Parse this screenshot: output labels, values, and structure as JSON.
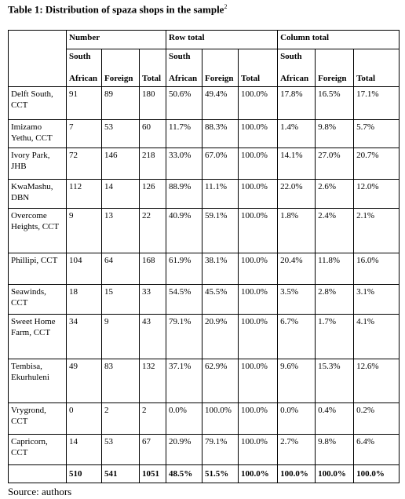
{
  "title": "Table 1: Distribution of spaza shops in the sample",
  "title_note": "2",
  "table": {
    "groups": [
      "Number",
      "Row total",
      "Column total"
    ],
    "subheaders": [
      [
        "South",
        "African"
      ],
      "Foreign",
      "Total",
      [
        "South",
        "African"
      ],
      "Foreign",
      "Total",
      [
        "South",
        "African"
      ],
      "Foreign",
      "Total"
    ],
    "rows": [
      [
        "Delft South, CCT",
        "91",
        "89",
        "180",
        "50.6%",
        "49.4%",
        "100.0%",
        "17.8%",
        "16.5%",
        "17.1%"
      ],
      [
        "Imizamo Yethu, CCT",
        "7",
        "53",
        "60",
        "11.7%",
        "88.3%",
        "100.0%",
        "1.4%",
        "9.8%",
        "5.7%"
      ],
      [
        "Ivory Park, JHB",
        "72",
        "146",
        "218",
        "33.0%",
        "67.0%",
        "100.0%",
        "14.1%",
        "27.0%",
        "20.7%"
      ],
      [
        "KwaMashu, DBN",
        "112",
        "14",
        "126",
        "88.9%",
        "11.1%",
        "100.0%",
        "22.0%",
        "2.6%",
        "12.0%"
      ],
      [
        "Overcome Heights, CCT",
        "9",
        "13",
        "22",
        "40.9%",
        "59.1%",
        "100.0%",
        "1.8%",
        "2.4%",
        "2.1%"
      ],
      [
        "Phillipi, CCT",
        "104",
        "64",
        "168",
        "61.9%",
        "38.1%",
        "100.0%",
        "20.4%",
        "11.8%",
        "16.0%"
      ],
      [
        "Seawinds, CCT",
        "18",
        "15",
        "33",
        "54.5%",
        "45.5%",
        "100.0%",
        "3.5%",
        "2.8%",
        "3.1%"
      ],
      [
        "Sweet Home Farm, CCT",
        "34",
        "9",
        "43",
        "79.1%",
        "20.9%",
        "100.0%",
        "6.7%",
        "1.7%",
        "4.1%"
      ],
      [
        "Tembisa, Ekurhuleni",
        "49",
        "83",
        "132",
        "37.1%",
        "62.9%",
        "100.0%",
        "9.6%",
        "15.3%",
        "12.6%"
      ],
      [
        "Vrygrond, CCT",
        "0",
        "2",
        "2",
        "0.0%",
        "100.0%",
        "100.0%",
        "0.0%",
        "0.4%",
        "0.2%"
      ],
      [
        "Capricorn, CCT",
        "14",
        "53",
        "67",
        "20.9%",
        "79.1%",
        "100.0%",
        "2.7%",
        "9.8%",
        "6.4%"
      ]
    ],
    "totals": [
      "510",
      "541",
      "1051",
      "48.5%",
      "51.5%",
      "100.0%",
      "100.0%",
      "100.0%",
      "100.0%"
    ]
  },
  "source": "Source: authors"
}
